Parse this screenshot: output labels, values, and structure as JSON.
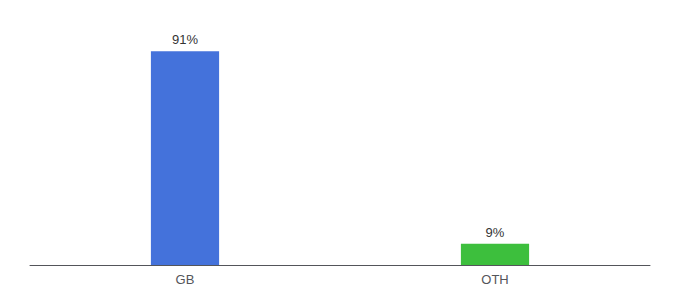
{
  "chart_data": {
    "type": "bar",
    "categories": [
      "GB",
      "OTH"
    ],
    "values": [
      91,
      9
    ],
    "value_labels": [
      "91%",
      "9%"
    ],
    "data_labels": true,
    "colors": [
      "#4472db",
      "#3dbf3d"
    ],
    "ylim": [
      0,
      100
    ],
    "grid": false,
    "tick_labels": "x"
  }
}
